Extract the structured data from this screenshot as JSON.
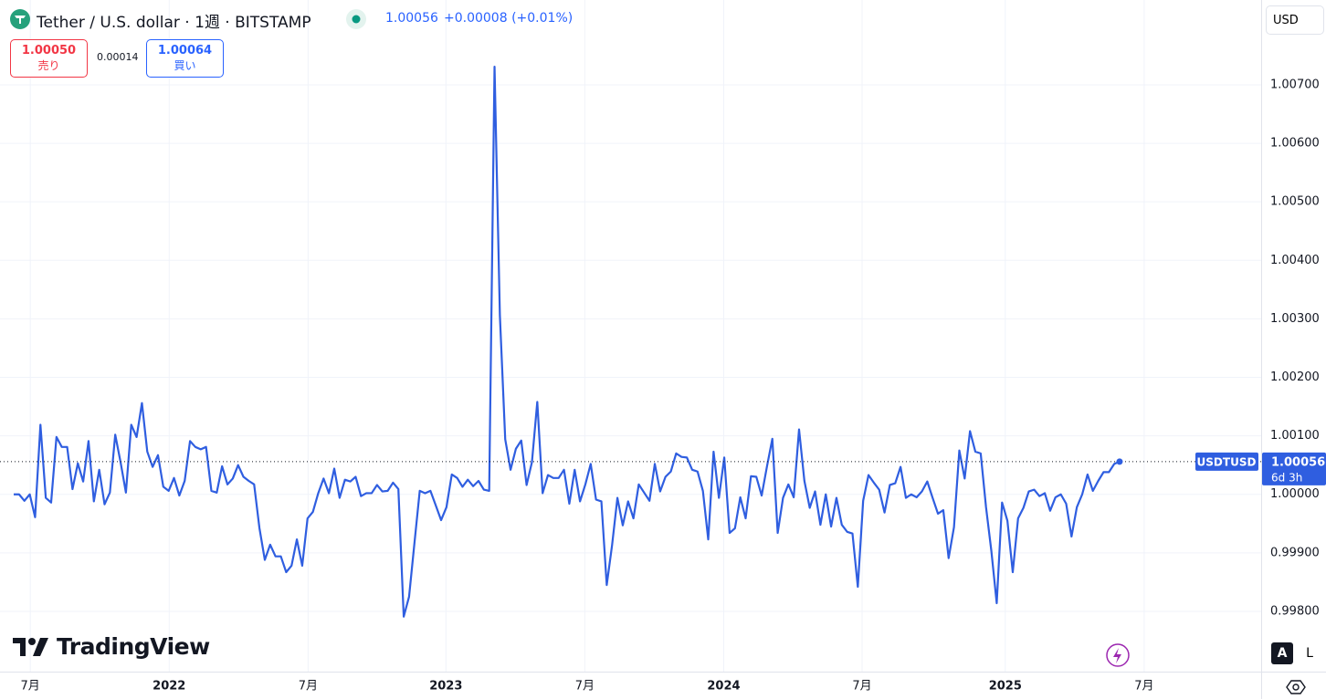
{
  "header": {
    "title": "Tether / U.S. dollar · 1週 · BITSTAMP",
    "price": "1.00056",
    "change": "+0.00008 (+0.01%)",
    "sell": {
      "price": "1.00050",
      "label": "売り"
    },
    "spread": "0.00014",
    "buy": {
      "price": "1.00064",
      "label": "買い"
    }
  },
  "controls": {
    "currency": "USD",
    "logo": "TradingView",
    "auto": "A",
    "log": "L"
  },
  "chart_data": {
    "type": "line",
    "grid": true,
    "countdown": "6d 3h",
    "series": [
      {
        "name": "USDTUSD",
        "color": "#2f5ee0",
        "values": [
          1.0,
          1.0,
          0.99989,
          1.0,
          0.99961,
          1.00119,
          0.99994,
          0.99986,
          1.00098,
          1.00081,
          1.00081,
          1.00009,
          1.00053,
          1.00022,
          1.00091,
          0.99988,
          1.00042,
          0.99983,
          1.00003,
          1.00102,
          1.00055,
          1.00003,
          1.00119,
          1.00098,
          1.00156,
          1.00073,
          1.00047,
          1.00067,
          1.00013,
          1.00006,
          1.00028,
          0.99998,
          1.00023,
          1.00091,
          1.00081,
          1.00077,
          1.00081,
          1.00006,
          1.00003,
          1.00048,
          1.00017,
          1.00027,
          1.0005,
          1.0003,
          1.00023,
          1.00017,
          0.99942,
          0.99888,
          0.99914,
          0.99894,
          0.99894,
          0.99867,
          0.99878,
          0.99923,
          0.99878,
          0.99959,
          0.9997,
          1.00002,
          1.00027,
          1.00002,
          1.00044,
          0.99994,
          1.00025,
          1.00022,
          1.0003,
          0.99997,
          1.00002,
          1.00002,
          1.00016,
          1.00005,
          1.00006,
          1.0002,
          1.00009,
          0.99791,
          0.99825,
          0.99916,
          1.00006,
          1.00002,
          1.00006,
          0.99981,
          0.99956,
          0.99978,
          1.00034,
          1.00028,
          1.00013,
          1.00025,
          1.00014,
          1.00023,
          1.00008,
          1.00006,
          1.00731,
          1.00306,
          1.00094,
          1.00042,
          1.00078,
          1.00092,
          1.00016,
          1.00055,
          1.00158,
          1.00002,
          1.00033,
          1.00028,
          1.00028,
          1.00042,
          0.99984,
          1.00042,
          0.99988,
          1.00017,
          1.00052,
          0.99991,
          0.99988,
          0.99845,
          0.99913,
          0.99994,
          0.99947,
          0.99988,
          0.99959,
          1.00017,
          1.00003,
          0.99989,
          1.00052,
          1.00005,
          1.0003,
          1.00039,
          1.0007,
          1.00064,
          1.00063,
          1.00042,
          1.00039,
          1.00006,
          0.99923,
          1.00073,
          0.99994,
          1.00063,
          0.99934,
          0.99942,
          0.99995,
          0.99959,
          1.00031,
          1.0003,
          0.99998,
          1.00048,
          1.00095,
          0.99934,
          0.99994,
          1.00017,
          0.99995,
          1.00111,
          1.00023,
          0.99977,
          1.00005,
          0.99948,
          1.0,
          0.99945,
          0.99994,
          0.99948,
          0.99936,
          0.99933,
          0.99842,
          0.99989,
          1.00033,
          1.0002,
          1.00008,
          0.99969,
          1.00016,
          1.00019,
          1.00047,
          0.99994,
          1.0,
          0.99995,
          1.00005,
          1.00022,
          0.99994,
          0.99967,
          0.99973,
          0.99891,
          0.99944,
          1.00075,
          1.00027,
          1.00108,
          1.00073,
          1.0007,
          0.99978,
          0.99903,
          0.99814,
          0.99986,
          0.99955,
          0.99867,
          0.99959,
          0.99977,
          1.00005,
          1.00008,
          0.99997,
          1.00002,
          0.99972,
          0.99995,
          1.0,
          0.99984,
          0.99928,
          0.99978,
          1.0,
          1.00034,
          1.00006,
          1.00023,
          1.00038,
          1.00038,
          1.00052,
          1.00056
        ]
      }
    ],
    "xlim": [
      -2.57,
      233.5
    ],
    "xticks": [
      {
        "value": 3.1,
        "label": "7月"
      },
      {
        "value": 29.1,
        "label": "2022"
      },
      {
        "value": 55.1,
        "label": "7月"
      },
      {
        "value": 80.9,
        "label": "2023"
      },
      {
        "value": 106.9,
        "label": "7月"
      },
      {
        "value": 132.9,
        "label": "2024"
      },
      {
        "value": 158.8,
        "label": "7月"
      },
      {
        "value": 185.6,
        "label": "2025"
      },
      {
        "value": 211.6,
        "label": "7月"
      }
    ],
    "ylim": [
      0.99697,
      1.00845
    ],
    "yticks": [
      {
        "value": 0.998,
        "label": "0.99800"
      },
      {
        "value": 0.999,
        "label": "0.99900"
      },
      {
        "value": 1.0,
        "label": "1.00000"
      },
      {
        "value": 1.001,
        "label": "1.00100"
      },
      {
        "value": 1.002,
        "label": "1.00200"
      },
      {
        "value": 1.003,
        "label": "1.00300"
      },
      {
        "value": 1.004,
        "label": "1.00400"
      },
      {
        "value": 1.005,
        "label": "1.00500"
      },
      {
        "value": 1.006,
        "label": "1.00600"
      },
      {
        "value": 1.007,
        "label": "1.00700"
      }
    ]
  }
}
